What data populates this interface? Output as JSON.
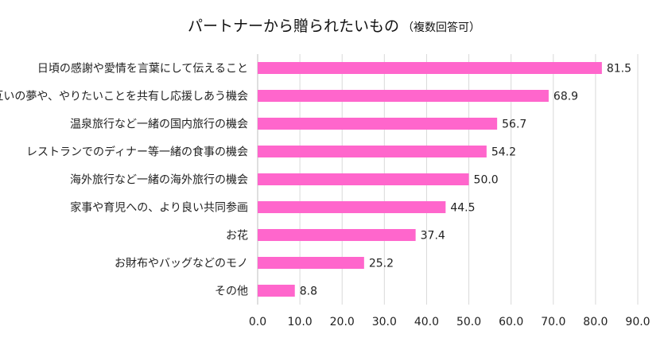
{
  "chart_data": {
    "type": "bar",
    "orientation": "horizontal",
    "title": "パートナーから贈られたいもの",
    "subtitle": "（複数回答可）",
    "categories": [
      "日頃の感謝や愛情を言葉にして伝えること",
      "互いの夢や、やりたいことを共有し応援しあう機会",
      "温泉旅行など一緒の国内旅行の機会",
      "レストランでのディナー等一緒の食事の機会",
      "海外旅行など一緒の海外旅行の機会",
      "家事や育児への、より良い共同参画",
      "お花",
      "お財布やバッグなどのモノ",
      "その他"
    ],
    "values": [
      81.5,
      68.9,
      56.7,
      54.2,
      50.0,
      44.5,
      37.4,
      25.2,
      8.8
    ],
    "value_labels": [
      "81.5",
      "68.9",
      "56.7",
      "54.2",
      "50.0",
      "44.5",
      "37.4",
      "25.2",
      "8.8"
    ],
    "xlim": [
      0,
      90
    ],
    "x_ticks": [
      0,
      10,
      20,
      30,
      40,
      50,
      60,
      70,
      80,
      90
    ],
    "x_tick_labels": [
      "0.0",
      "10.0",
      "20.0",
      "30.0",
      "40.0",
      "50.0",
      "60.0",
      "70.0",
      "80.0",
      "90.0"
    ],
    "grid": true,
    "legend": "none",
    "bar_color": "#FF66CC",
    "grid_color": "#D9D9D9"
  }
}
